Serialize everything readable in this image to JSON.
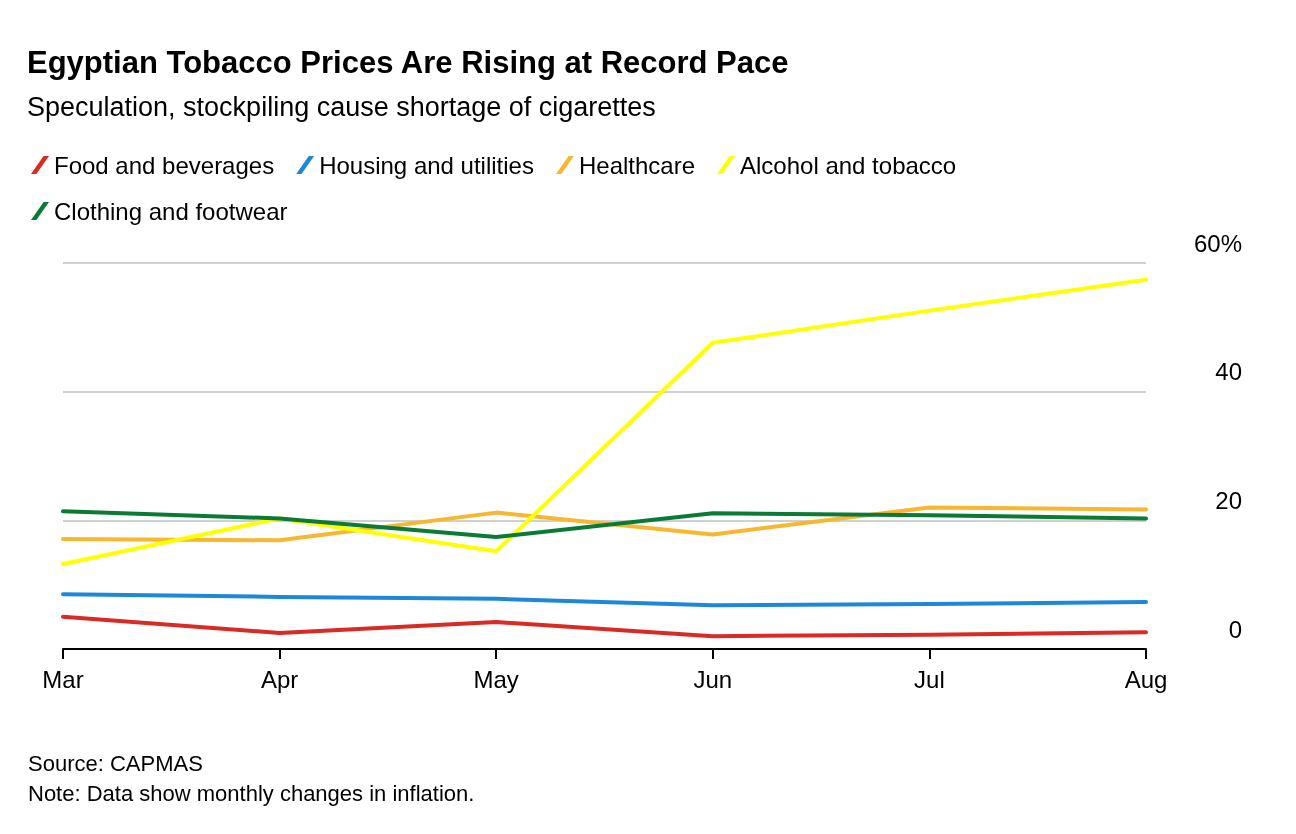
{
  "chart_data": {
    "type": "line",
    "title": "Egyptian Tobacco Prices Are Rising at Record Pace",
    "subtitle": "Speculation, stockpiling cause shortage of cigarettes",
    "categories": [
      "Mar",
      "Apr",
      "May",
      "Jun",
      "Jul",
      "Aug"
    ],
    "series": [
      {
        "name": "Food and beverages",
        "color": "#d92a23",
        "values": [
          5.0,
          2.5,
          4.2,
          2.0,
          2.2,
          2.6
        ]
      },
      {
        "name": "Housing and utilities",
        "color": "#1e88d8",
        "values": [
          8.5,
          8.1,
          7.8,
          6.8,
          7.0,
          7.3
        ]
      },
      {
        "name": "Healthcare",
        "color": "#f7b731",
        "values": [
          17.1,
          16.9,
          21.2,
          17.8,
          22.0,
          21.7
        ]
      },
      {
        "name": "Alcohol and tobacco",
        "color": "#ffff00",
        "values": [
          13.2,
          20.3,
          15.2,
          47.6,
          52.6,
          57.4
        ]
      },
      {
        "name": "Clothing and footwear",
        "color": "#0a7a35",
        "values": [
          21.4,
          20.3,
          17.4,
          21.1,
          20.8,
          20.3
        ]
      }
    ],
    "ylim": [
      0,
      60
    ],
    "yticks": [
      0,
      20,
      40,
      {
        "value": 60,
        "label": "60%"
      }
    ],
    "grid": "y",
    "legend": "top left",
    "marker": "none",
    "line_style": "solid",
    "annotations": [
      "Source: CAPMAS",
      "Note: Data show monthly changes in inflation."
    ]
  }
}
